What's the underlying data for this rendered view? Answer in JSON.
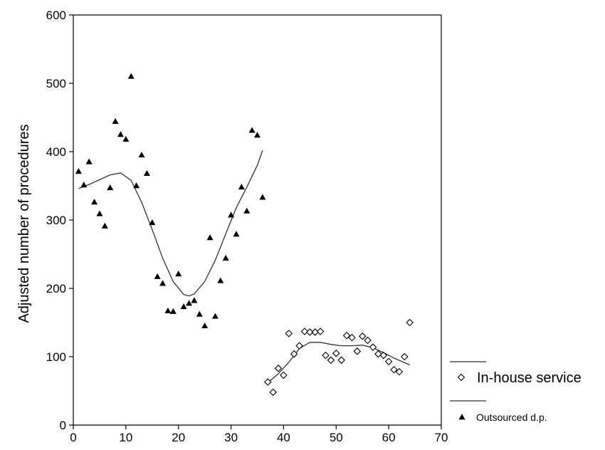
{
  "chart_data": {
    "type": "scatter",
    "title": "",
    "xlabel": "",
    "ylabel": "Adjusted number of procedures",
    "xlim": [
      0,
      70
    ],
    "ylim": [
      0,
      600
    ],
    "xticks": [
      "0",
      "10",
      "20",
      "30",
      "40",
      "50",
      "60",
      "70"
    ],
    "yticks": [
      "0",
      "100",
      "200",
      "300",
      "400",
      "500",
      "600"
    ],
    "legend": {
      "placement": "bottom-right"
    },
    "series": [
      {
        "name": "In-house service",
        "marker": "diamond-open",
        "color": "#000000",
        "points": [
          [
            37,
            63
          ],
          [
            38,
            48
          ],
          [
            39,
            83
          ],
          [
            40,
            73
          ],
          [
            41,
            134
          ],
          [
            42,
            104
          ],
          [
            43,
            116
          ],
          [
            44,
            137
          ],
          [
            45,
            136
          ],
          [
            46,
            136
          ],
          [
            47,
            137
          ],
          [
            48,
            102
          ],
          [
            49,
            95
          ],
          [
            50,
            105
          ],
          [
            51,
            95
          ],
          [
            52,
            131
          ],
          [
            53,
            128
          ],
          [
            54,
            108
          ],
          [
            55,
            130
          ],
          [
            56,
            124
          ],
          [
            57,
            114
          ],
          [
            58,
            104
          ],
          [
            59,
            102
          ],
          [
            60,
            93
          ],
          [
            61,
            81
          ],
          [
            62,
            78
          ],
          [
            63,
            100
          ],
          [
            64,
            150
          ]
        ],
        "fit": [
          [
            37,
            62
          ],
          [
            39,
            75
          ],
          [
            41,
            92
          ],
          [
            43,
            112
          ],
          [
            45,
            121
          ],
          [
            47,
            121
          ],
          [
            49,
            118
          ],
          [
            51,
            116
          ],
          [
            53,
            116
          ],
          [
            55,
            117
          ],
          [
            57,
            113
          ],
          [
            59,
            106
          ],
          [
            61,
            98
          ],
          [
            64,
            88
          ]
        ]
      },
      {
        "name": "Outsourced d.p.",
        "marker": "triangle-filled",
        "color": "#000000",
        "points": [
          [
            1,
            371
          ],
          [
            2,
            351
          ],
          [
            3,
            385
          ],
          [
            4,
            326
          ],
          [
            5,
            309
          ],
          [
            6,
            291
          ],
          [
            7,
            347
          ],
          [
            8,
            444
          ],
          [
            9,
            425
          ],
          [
            10,
            418
          ],
          [
            11,
            510
          ],
          [
            12,
            350
          ],
          [
            13,
            395
          ],
          [
            14,
            368
          ],
          [
            15,
            296
          ],
          [
            16,
            217
          ],
          [
            17,
            207
          ],
          [
            18,
            167
          ],
          [
            19,
            166
          ],
          [
            20,
            221
          ],
          [
            21,
            173
          ],
          [
            22,
            178
          ],
          [
            23,
            182
          ],
          [
            24,
            162
          ],
          [
            25,
            145
          ],
          [
            26,
            274
          ],
          [
            27,
            159
          ],
          [
            28,
            211
          ],
          [
            29,
            244
          ],
          [
            30,
            307
          ],
          [
            31,
            279
          ],
          [
            32,
            348
          ],
          [
            33,
            313
          ],
          [
            34,
            431
          ],
          [
            35,
            424
          ],
          [
            36,
            333
          ]
        ],
        "fit": [
          [
            1,
            346
          ],
          [
            3,
            352
          ],
          [
            5,
            359
          ],
          [
            7,
            366
          ],
          [
            9,
            369
          ],
          [
            11,
            358
          ],
          [
            13,
            326
          ],
          [
            15,
            286
          ],
          [
            17,
            244
          ],
          [
            19,
            210
          ],
          [
            21,
            191
          ],
          [
            22,
            189
          ],
          [
            23,
            192
          ],
          [
            25,
            210
          ],
          [
            27,
            241
          ],
          [
            29,
            280
          ],
          [
            31,
            318
          ],
          [
            33,
            348
          ],
          [
            35,
            380
          ],
          [
            36,
            402
          ]
        ]
      }
    ]
  }
}
